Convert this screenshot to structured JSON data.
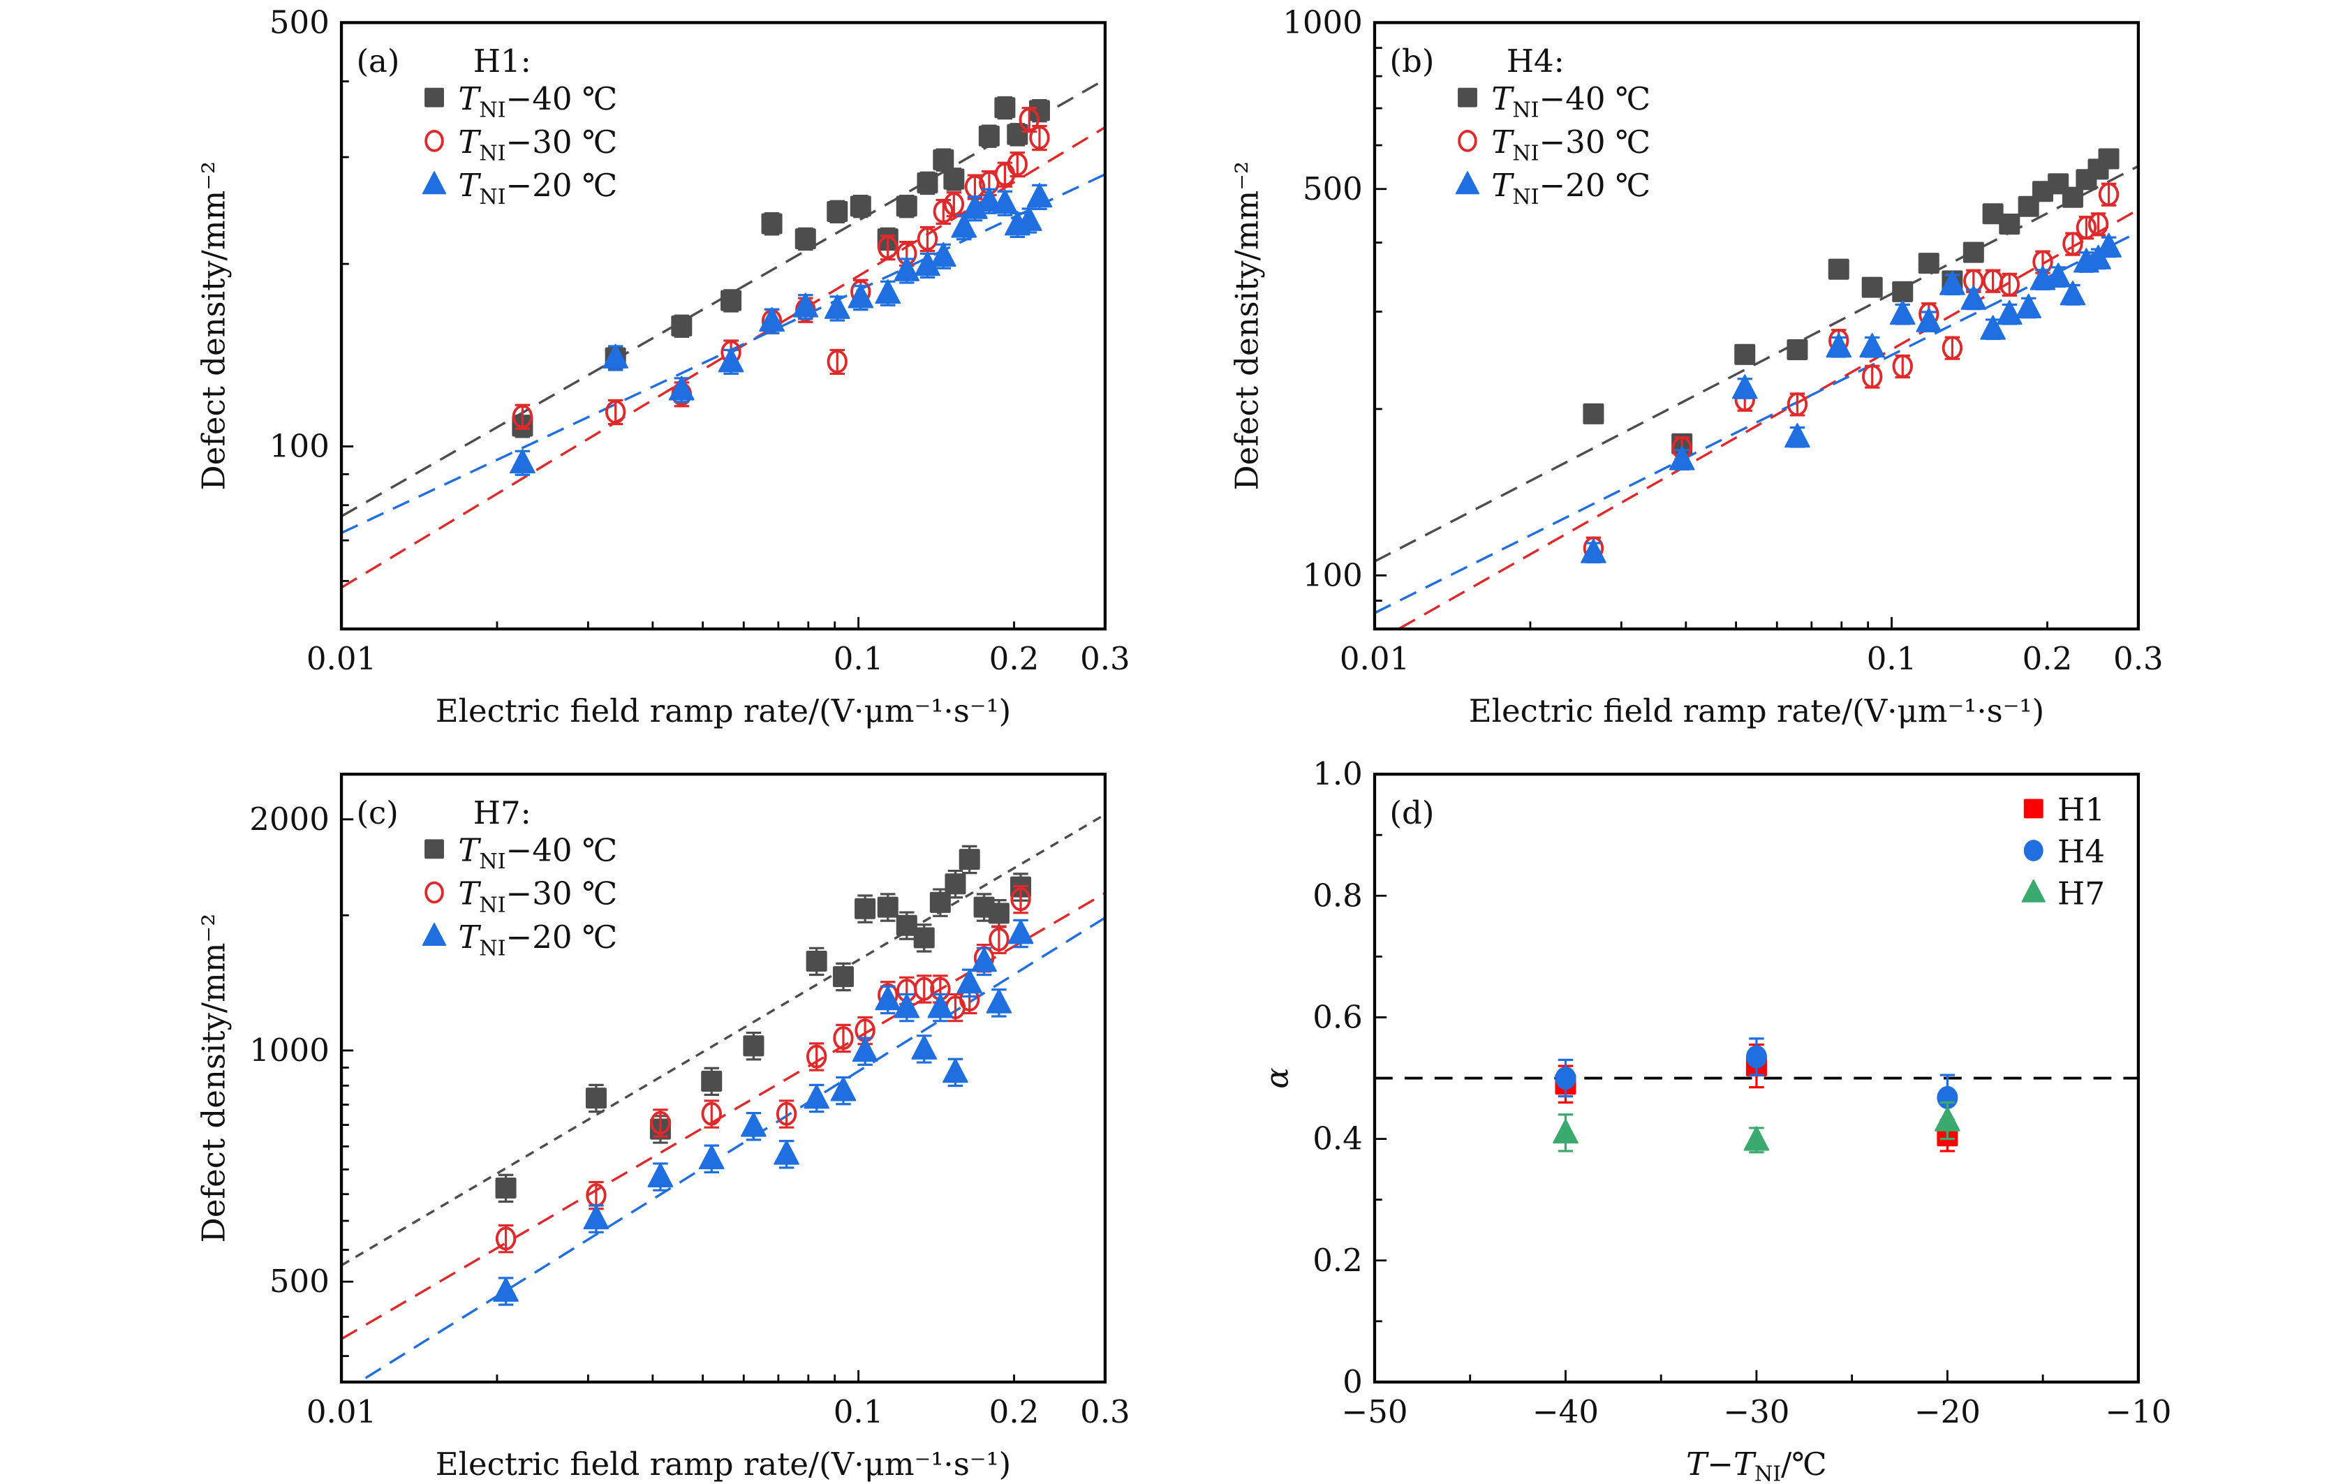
{
  "chart_data": [
    {
      "panel": "(a)",
      "type": "scatter",
      "title": "H1:",
      "xlabel": "Electric field ramp rate/(V·μm⁻¹·s⁻¹)",
      "ylabel": "Defect density/mm⁻²",
      "xscale": "log",
      "yscale": "log",
      "xlim": [
        0.01,
        0.3
      ],
      "ylim": [
        50,
        500
      ],
      "xticks": [
        0.01,
        0.1,
        0.2,
        0.3
      ],
      "xtick_labels": [
        "0.01",
        "0.1",
        "0.2",
        "0.3"
      ],
      "yticks": [
        100,
        500
      ],
      "ytick_labels": [
        "100",
        "500"
      ],
      "legend_position": "top-left",
      "series": [
        {
          "name": "T_NI−40 ℃",
          "label_main": "T",
          "label_sub": "NI",
          "label_rest": "−40 ℃",
          "marker": "square-filled",
          "color": "#4d4d4d",
          "x": [
            0.0224,
            0.0339,
            0.0455,
            0.0567,
            0.068,
            0.079,
            0.091,
            0.101,
            0.114,
            0.124,
            0.136,
            0.146,
            0.153,
            0.179,
            0.192,
            0.203,
            0.224
          ],
          "y": [
            108,
            140,
            158,
            174,
            233,
            220,
            244,
            249,
            220,
            249,
            272,
            297,
            276,
            325,
            362,
            327,
            358
          ],
          "err": 0.04,
          "fit": {
            "x": [
              0.01,
              0.3
            ],
            "y": [
              76.7,
              403
            ]
          }
        },
        {
          "name": "T_NI−30 ℃",
          "label_main": "T",
          "label_sub": "NI",
          "label_rest": "−30 ℃",
          "marker": "circle-open",
          "color": "#e0292b",
          "x": [
            0.0224,
            0.0339,
            0.0455,
            0.0567,
            0.068,
            0.079,
            0.091,
            0.101,
            0.114,
            0.124,
            0.136,
            0.146,
            0.153,
            0.168,
            0.179,
            0.192,
            0.203,
            0.214,
            0.224
          ],
          "y": [
            112,
            114,
            122,
            143,
            161,
            168,
            138,
            180,
            213,
            208,
            220,
            244,
            251,
            268,
            272,
            281,
            292,
            346,
            323
          ],
          "err": 0.045,
          "fit": {
            "x": [
              0.01,
              0.3
            ],
            "y": [
              58.5,
              336
            ]
          }
        },
        {
          "name": "T_NI−20 ℃",
          "label_main": "T",
          "label_sub": "NI",
          "label_rest": "−20 ℃",
          "marker": "triangle-filled",
          "color": "#1f6fe0",
          "x": [
            0.0224,
            0.0339,
            0.0455,
            0.0567,
            0.068,
            0.079,
            0.091,
            0.101,
            0.114,
            0.124,
            0.136,
            0.146,
            0.16,
            0.168,
            0.179,
            0.192,
            0.203,
            0.214,
            0.224
          ],
          "y": [
            94,
            140,
            124,
            138,
            161,
            170,
            169,
            176,
            179,
            195,
            199,
            206,
            230,
            247,
            254,
            252,
            232,
            236,
            258
          ],
          "err": 0.045,
          "fit": {
            "x": [
              0.01,
              0.3
            ],
            "y": [
              72,
              281
            ]
          }
        }
      ]
    },
    {
      "panel": "(b)",
      "type": "scatter",
      "title": "H4:",
      "xlabel": "Electric field ramp rate/(V·μm⁻¹·s⁻¹)",
      "ylabel": "Defect density/mm⁻²",
      "xscale": "log",
      "yscale": "log",
      "xlim": [
        0.01,
        0.3
      ],
      "ylim": [
        80,
        1000
      ],
      "xticks": [
        0.01,
        0.1,
        0.2,
        0.3
      ],
      "xtick_labels": [
        "0.01",
        "0.1",
        "0.2",
        "0.3"
      ],
      "yticks": [
        100,
        500,
        1000
      ],
      "ytick_labels": [
        "100",
        "500",
        "1000"
      ],
      "legend_position": "top-left",
      "series": [
        {
          "name": "T_NI−40 ℃",
          "label_main": "T",
          "label_sub": "NI",
          "label_rest": "−40 ℃",
          "marker": "square-filled",
          "color": "#4d4d4d",
          "x": [
            0.0265,
            0.0393,
            0.052,
            0.0657,
            0.079,
            0.0917,
            0.105,
            0.118,
            0.131,
            0.144,
            0.157,
            0.169,
            0.184,
            0.196,
            0.21,
            0.224,
            0.238,
            0.251,
            0.263
          ],
          "y": [
            196,
            173,
            251,
            256,
            358,
            332,
            326,
            367,
            341,
            384,
            451,
            432,
            465,
            495,
            511,
            483,
            520,
            543,
            567
          ],
          "err": 0.035,
          "fit": {
            "x": [
              0.01,
              0.3
            ],
            "y": [
              106,
              550
            ]
          }
        },
        {
          "name": "T_NI−30 ℃",
          "label_main": "T",
          "label_sub": "NI",
          "label_rest": "−30 ℃",
          "marker": "circle-open",
          "color": "#e0292b",
          "x": [
            0.0265,
            0.0393,
            0.052,
            0.0657,
            0.079,
            0.0917,
            0.105,
            0.118,
            0.131,
            0.144,
            0.157,
            0.169,
            0.196,
            0.224,
            0.238,
            0.251,
            0.263
          ],
          "y": [
            112,
            170,
            208,
            204,
            266,
            229,
            239,
            297,
            258,
            341,
            341,
            336,
            369,
            398,
            426,
            432,
            489
          ],
          "err": 0.045,
          "fit": {
            "x": [
              0.01,
              0.3
            ],
            "y": [
              75.6,
              459
            ]
          }
        },
        {
          "name": "T_NI−20 ℃",
          "label_main": "T",
          "label_sub": "NI",
          "label_rest": "−20 ℃",
          "marker": "triangle-filled",
          "color": "#1f6fe0",
          "x": [
            0.0265,
            0.0393,
            0.052,
            0.0657,
            0.079,
            0.0917,
            0.105,
            0.118,
            0.131,
            0.144,
            0.157,
            0.169,
            0.184,
            0.196,
            0.21,
            0.224,
            0.238,
            0.251,
            0.263
          ],
          "y": [
            110,
            162,
            218,
            178,
            259,
            259,
            297,
            288,
            336,
            316,
            279,
            297,
            305,
            343,
            347,
            322,
            369,
            374,
            393
          ],
          "err": 0.04,
          "fit": {
            "x": [
              0.01,
              0.3
            ],
            "y": [
              85.5,
              418
            ]
          }
        }
      ]
    },
    {
      "panel": "(c)",
      "type": "scatter",
      "title": "H7:",
      "xlabel": "Electric field ramp rate/(V·μm⁻¹·s⁻¹)",
      "ylabel": "Defect density/mm⁻²",
      "xscale": "log",
      "yscale": "log",
      "xlim": [
        0.01,
        0.3
      ],
      "ylim": [
        370,
        2290
      ],
      "xticks": [
        0.01,
        0.1,
        0.2,
        0.3
      ],
      "xtick_labels": [
        "0.01",
        "0.1",
        "0.2",
        "0.3"
      ],
      "yticks": [
        500,
        1000,
        2000
      ],
      "ytick_labels": [
        "500",
        "1000",
        "2000"
      ],
      "legend_position": "top-left",
      "series": [
        {
          "name": "T_NI−40 ℃",
          "label_main": "T",
          "label_sub": "NI",
          "label_rest": "−40 ℃",
          "marker": "square-filled",
          "color": "#4d4d4d",
          "x": [
            0.0208,
            0.0311,
            0.0414,
            0.052,
            0.0627,
            0.083,
            0.0935,
            0.103,
            0.114,
            0.124,
            0.134,
            0.144,
            0.154,
            0.164,
            0.175,
            0.187,
            0.206
          ],
          "y": [
            662,
            867,
            790,
            912,
            1014,
            1307,
            1248,
            1530,
            1537,
            1455,
            1402,
            1559,
            1648,
            1774,
            1537,
            1509,
            1633
          ],
          "err": 0.04,
          "fit": {
            "x": [
              0.01,
              0.3
            ],
            "y": [
              525,
              2030
            ]
          }
        },
        {
          "name": "T_NI−30 ℃",
          "label_main": "T",
          "label_sub": "NI",
          "label_rest": "−30 ℃",
          "marker": "circle-open",
          "color": "#e0292b",
          "x": [
            0.0208,
            0.0311,
            0.0414,
            0.052,
            0.0726,
            0.083,
            0.0935,
            0.103,
            0.114,
            0.124,
            0.134,
            0.144,
            0.154,
            0.164,
            0.175,
            0.187,
            0.206
          ],
          "y": [
            569,
            648,
            805,
            827,
            827,
            982,
            1038,
            1062,
            1181,
            1197,
            1203,
            1203,
            1138,
            1165,
            1320,
            1395,
            1574
          ],
          "err": 0.04,
          "fit": {
            "x": [
              0.01,
              0.3
            ],
            "y": [
              421,
              1603
            ]
          }
        },
        {
          "name": "T_NI−20 ℃",
          "label_main": "T",
          "label_sub": "NI",
          "label_rest": "−20 ℃",
          "marker": "triangle-filled",
          "color": "#1f6fe0",
          "x": [
            0.0208,
            0.0311,
            0.0414,
            0.052,
            0.0627,
            0.0726,
            0.083,
            0.0935,
            0.103,
            0.114,
            0.124,
            0.134,
            0.144,
            0.154,
            0.164,
            0.175,
            0.187,
            0.206
          ],
          "y": [
            486,
            604,
            685,
            723,
            797,
            733,
            867,
            887,
            998,
            1165,
            1138,
            1005,
            1138,
            937,
            1225,
            1307,
            1154,
            1421
          ],
          "err": 0.04,
          "fit": {
            "x": [
              0.01,
              0.3
            ],
            "y": [
              358,
              1489
            ]
          }
        }
      ]
    },
    {
      "panel": "(d)",
      "type": "scatter",
      "title": "",
      "xlabel": "T−T_NI/℃",
      "xlabel_parts": {
        "a": "T",
        "b": "−",
        "c": "T",
        "sub": "NI",
        "d": "/℃"
      },
      "ylabel": "α",
      "xscale": "linear",
      "yscale": "linear",
      "xlim": [
        -50,
        -10
      ],
      "ylim": [
        0,
        1.0
      ],
      "xticks": [
        -50,
        -40,
        -30,
        -20,
        -10
      ],
      "xtick_labels": [
        "−50",
        "−40",
        "−30",
        "−20",
        "−10"
      ],
      "yticks": [
        0,
        0.2,
        0.4,
        0.6,
        0.8,
        1.0
      ],
      "ytick_labels": [
        "0",
        "0.2",
        "0.4",
        "0.6",
        "0.8",
        "1.0"
      ],
      "reference_line": {
        "y": 0.5,
        "style": "dashed",
        "color": "#000000"
      },
      "legend_position": "top-right",
      "series": [
        {
          "name": "H1",
          "marker": "square-filled",
          "color": "#ff0000",
          "x": [
            -40,
            -30,
            -20
          ],
          "y": [
            0.49,
            0.52,
            0.405
          ],
          "yerr": [
            0.03,
            0.035,
            0.025
          ]
        },
        {
          "name": "H4",
          "marker": "circle-filled",
          "color": "#1f6fe0",
          "x": [
            -40,
            -30,
            -20
          ],
          "y": [
            0.5,
            0.535,
            0.468
          ],
          "yerr": [
            0.03,
            0.03,
            0.037
          ]
        },
        {
          "name": "H7",
          "marker": "triangle-filled",
          "color": "#3aaa6e",
          "x": [
            -40,
            -30,
            -20
          ],
          "y": [
            0.41,
            0.398,
            0.43
          ],
          "yerr": [
            0.03,
            0.02,
            0.03
          ]
        }
      ]
    }
  ]
}
